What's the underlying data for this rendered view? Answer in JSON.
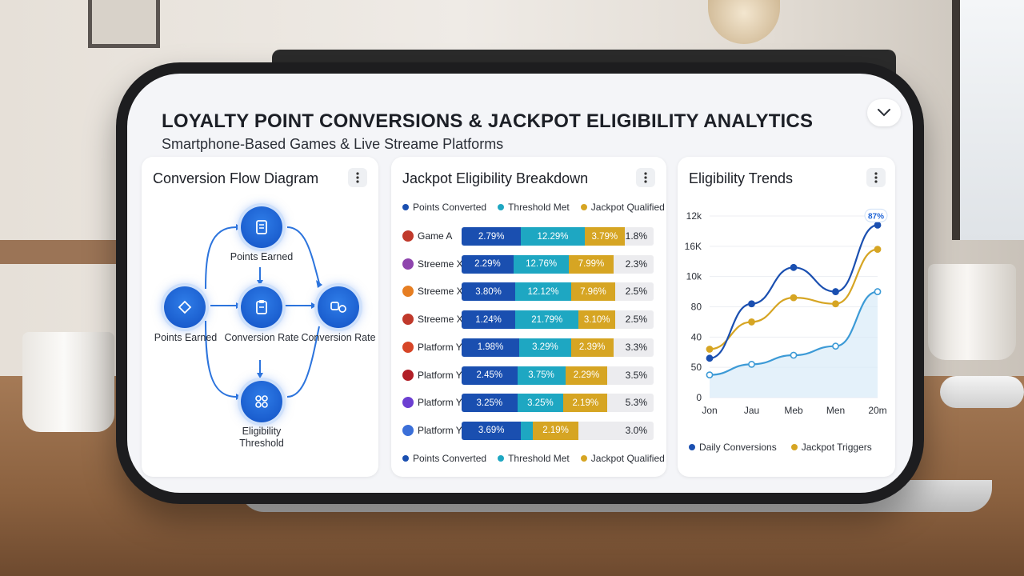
{
  "header": {
    "title": "LOYALTY POINT CONVERSIONS & JACKPOT ELIGIBILITY ANALYTICS",
    "subtitle": "Smartphone-Based Games & Live Streame Platforms"
  },
  "icons": {
    "collapse": "chevron-down-icon",
    "menu": "more-vertical-icon"
  },
  "colors": {
    "points_converted": "#1a4fb0",
    "threshold_met": "#1ea7c2",
    "jackpot_qualified": "#d6a523",
    "accent": "#1e63d6"
  },
  "flow": {
    "title": "Conversion Flow Diagram",
    "nodes": {
      "top": "Points Earned",
      "left": "Points Earned",
      "center": "Conversion Rate",
      "right": "Conversion Rate",
      "bottom": "Eligibility Threshold"
    }
  },
  "breakdown": {
    "title": "Jackpot Eligibility Breakdown",
    "legend": [
      "Points Converted",
      "Threshold Met",
      "Jackpot Qualified"
    ],
    "rows": [
      {
        "name": "Game A",
        "icon_color": "#c0392b",
        "pc": "2.79%",
        "tm": "12.29%",
        "jq": "3.79%",
        "remaining": "1.8%",
        "pc_share": 0.31,
        "tm_share": 0.33,
        "jq_share": 0.21
      },
      {
        "name": "Streeme X",
        "icon_color": "#8e44ad",
        "pc": "2.29%",
        "tm": "12.76%",
        "jq": "7.99%",
        "remaining": "2.3%",
        "pc_share": 0.27,
        "tm_share": 0.29,
        "jq_share": 0.23
      },
      {
        "name": "Streeme X",
        "icon_color": "#e67e22",
        "pc": "3.80%",
        "tm": "12.12%",
        "jq": "7.96%",
        "remaining": "2.5%",
        "pc_share": 0.28,
        "tm_share": 0.29,
        "jq_share": 0.23
      },
      {
        "name": "Streeme X",
        "icon_color": "#c0392b",
        "pc": "1.24%",
        "tm": "21.79%",
        "jq": "3.10%",
        "remaining": "2.5%",
        "pc_share": 0.28,
        "tm_share": 0.33,
        "jq_share": 0.19
      },
      {
        "name": "Platform Y",
        "icon_color": "#d64527",
        "pc": "1.98%",
        "tm": "3.29%",
        "jq": "2.39%",
        "remaining": "3.3%",
        "pc_share": 0.3,
        "tm_share": 0.27,
        "jq_share": 0.22
      },
      {
        "name": "Platform Y",
        "icon_color": "#b11f27",
        "pc": "2.45%",
        "tm": "3.75%",
        "jq": "2.29%",
        "remaining": "3.5%",
        "pc_share": 0.29,
        "tm_share": 0.25,
        "jq_share": 0.22
      },
      {
        "name": "Platform Y",
        "icon_color": "#6c3fd1",
        "pc": "3.25%",
        "tm": "3.25%",
        "jq": "2.19%",
        "remaining": "5.3%",
        "pc_share": 0.29,
        "tm_share": 0.24,
        "jq_share": 0.23
      },
      {
        "name": "Platform Y",
        "icon_color": "#3b6fd8",
        "pc": "3.69%",
        "tm": "",
        "jq": "2.19%",
        "remaining": "3.0%",
        "pc_share": 0.31,
        "tm_share": 0.06,
        "jq_share": 0.24
      }
    ]
  },
  "trends": {
    "title": "Eligibility Trends",
    "badge": "87%",
    "legend": [
      "Daily Conversions",
      "Jackpot Triggers"
    ]
  },
  "chart_data": {
    "type": "line",
    "title": "Eligibility Trends",
    "categories": [
      "Jon",
      "Jau",
      "Meb",
      "Men",
      "20m"
    ],
    "yticks": [
      "0",
      "50",
      "40",
      "80",
      "10k",
      "16K",
      "12k"
    ],
    "series": [
      {
        "name": "Daily Conversions",
        "color": "#1a4fb0",
        "values": [
          1.3,
          3.1,
          4.3,
          3.5,
          5.7
        ]
      },
      {
        "name": "Jackpot Triggers",
        "color": "#d6a523",
        "values": [
          1.6,
          2.5,
          3.3,
          3.1,
          4.9
        ]
      },
      {
        "name": "",
        "color": "#3c9ad6",
        "values": [
          0.75,
          1.1,
          1.4,
          1.7,
          3.5
        ]
      }
    ],
    "ylim": [
      0,
      6
    ],
    "grid": true,
    "legend_position": "bottom"
  }
}
